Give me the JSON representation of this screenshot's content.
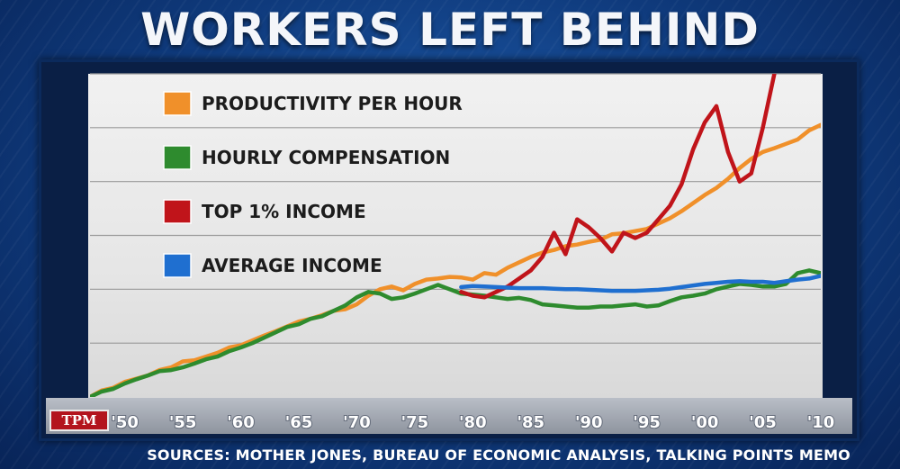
{
  "header": {
    "title": "WORKERS LEFT BEHIND"
  },
  "footer": {
    "logo_text": "TPM",
    "sources": "SOURCES: MOTHER JONES, BUREAU OF ECONOMIC ANALYSIS, TALKING POINTS MEMO"
  },
  "chart_data": {
    "type": "line",
    "title": "WORKERS LEFT BEHIND",
    "xlabel": "",
    "ylabel": "",
    "xlim": [
      1947,
      2010
    ],
    "ylim": [
      0,
      6
    ],
    "grid": true,
    "legend_placement": "top-left",
    "x_ticks": [
      1950,
      1955,
      1960,
      1965,
      1970,
      1975,
      1980,
      1985,
      1990,
      1995,
      2000,
      2005,
      2010
    ],
    "x_tick_labels": [
      "'50",
      "'55",
      "'60",
      "'65",
      "'70",
      "'75",
      "'80",
      "'85",
      "'90",
      "'95",
      "'00",
      "'05",
      "'10"
    ],
    "series": [
      {
        "name": "PRODUCTIVITY PER HOUR",
        "color": "#f0902a",
        "x": [
          1947,
          1948,
          1949,
          1950,
          1951,
          1952,
          1953,
          1954,
          1955,
          1956,
          1957,
          1958,
          1959,
          1960,
          1961,
          1962,
          1963,
          1964,
          1965,
          1966,
          1967,
          1968,
          1969,
          1970,
          1971,
          1972,
          1973,
          1974,
          1975,
          1976,
          1977,
          1978,
          1979,
          1980,
          1981,
          1982,
          1983,
          1984,
          1985,
          1986,
          1987,
          1988,
          1989,
          1990,
          1991,
          1992,
          1993,
          1994,
          1995,
          1996,
          1997,
          1998,
          1999,
          2000,
          2001,
          2002,
          2003,
          2004,
          2005,
          2006,
          2007,
          2008,
          2009,
          2010
        ],
        "y": [
          0.0,
          0.12,
          0.17,
          0.28,
          0.34,
          0.4,
          0.5,
          0.55,
          0.66,
          0.68,
          0.75,
          0.82,
          0.92,
          0.96,
          1.05,
          1.14,
          1.22,
          1.31,
          1.4,
          1.45,
          1.52,
          1.6,
          1.63,
          1.72,
          1.88,
          2.0,
          2.05,
          1.98,
          2.1,
          2.18,
          2.2,
          2.23,
          2.22,
          2.18,
          2.3,
          2.27,
          2.4,
          2.5,
          2.6,
          2.68,
          2.73,
          2.8,
          2.83,
          2.88,
          2.92,
          3.02,
          3.04,
          3.08,
          3.12,
          3.22,
          3.32,
          3.45,
          3.6,
          3.75,
          3.88,
          4.05,
          4.25,
          4.42,
          4.55,
          4.62,
          4.7,
          4.78,
          4.95,
          5.05
        ]
      },
      {
        "name": "HOURLY COMPENSATION",
        "color": "#2e8b2e",
        "x": [
          1947,
          1948,
          1949,
          1950,
          1951,
          1952,
          1953,
          1954,
          1955,
          1956,
          1957,
          1958,
          1959,
          1960,
          1961,
          1962,
          1963,
          1964,
          1965,
          1966,
          1967,
          1968,
          1969,
          1970,
          1971,
          1972,
          1973,
          1974,
          1975,
          1976,
          1977,
          1978,
          1979,
          1980,
          1981,
          1982,
          1983,
          1984,
          1985,
          1986,
          1987,
          1988,
          1989,
          1990,
          1991,
          1992,
          1993,
          1994,
          1995,
          1996,
          1997,
          1998,
          1999,
          2000,
          2001,
          2002,
          2003,
          2004,
          2005,
          2006,
          2007,
          2008,
          2009,
          2010
        ],
        "y": [
          0.0,
          0.1,
          0.15,
          0.25,
          0.33,
          0.4,
          0.48,
          0.5,
          0.55,
          0.62,
          0.7,
          0.75,
          0.85,
          0.92,
          1.0,
          1.1,
          1.2,
          1.3,
          1.35,
          1.45,
          1.5,
          1.6,
          1.7,
          1.85,
          1.95,
          1.92,
          1.82,
          1.85,
          1.92,
          2.0,
          2.08,
          2.0,
          1.92,
          1.9,
          1.88,
          1.85,
          1.82,
          1.84,
          1.8,
          1.72,
          1.7,
          1.68,
          1.66,
          1.66,
          1.68,
          1.68,
          1.7,
          1.72,
          1.68,
          1.7,
          1.78,
          1.85,
          1.88,
          1.92,
          2.0,
          2.05,
          2.1,
          2.08,
          2.05,
          2.05,
          2.1,
          2.3,
          2.35,
          2.3
        ]
      },
      {
        "name": "TOP 1% INCOME",
        "color": "#c0141a",
        "x": [
          1979,
          1980,
          1981,
          1982,
          1983,
          1984,
          1985,
          1986,
          1987,
          1988,
          1989,
          1990,
          1991,
          1992,
          1993,
          1994,
          1995,
          1996,
          1997,
          1998,
          1999,
          2000,
          2001,
          2002,
          2003,
          2004,
          2005,
          2006
        ],
        "y": [
          1.95,
          1.88,
          1.85,
          1.95,
          2.05,
          2.2,
          2.35,
          2.6,
          3.05,
          2.65,
          3.3,
          3.15,
          2.95,
          2.7,
          3.05,
          2.95,
          3.05,
          3.3,
          3.55,
          3.95,
          4.6,
          5.1,
          5.4,
          4.55,
          4.0,
          4.15,
          5.0,
          6.0
        ]
      },
      {
        "name": "AVERAGE INCOME",
        "color": "#1f6fd0",
        "x": [
          1979,
          1980,
          1981,
          1982,
          1983,
          1984,
          1985,
          1986,
          1987,
          1988,
          1989,
          1990,
          1991,
          1992,
          1993,
          1994,
          1995,
          1996,
          1997,
          1998,
          1999,
          2000,
          2001,
          2002,
          2003,
          2004,
          2005,
          2006,
          2007,
          2008,
          2009,
          2010
        ],
        "y": [
          2.04,
          2.06,
          2.05,
          2.04,
          2.03,
          2.02,
          2.02,
          2.02,
          2.01,
          2.0,
          2.0,
          1.99,
          1.98,
          1.97,
          1.97,
          1.97,
          1.98,
          1.99,
          2.01,
          2.04,
          2.07,
          2.1,
          2.12,
          2.14,
          2.15,
          2.14,
          2.14,
          2.12,
          2.15,
          2.18,
          2.2,
          2.25
        ]
      }
    ]
  }
}
